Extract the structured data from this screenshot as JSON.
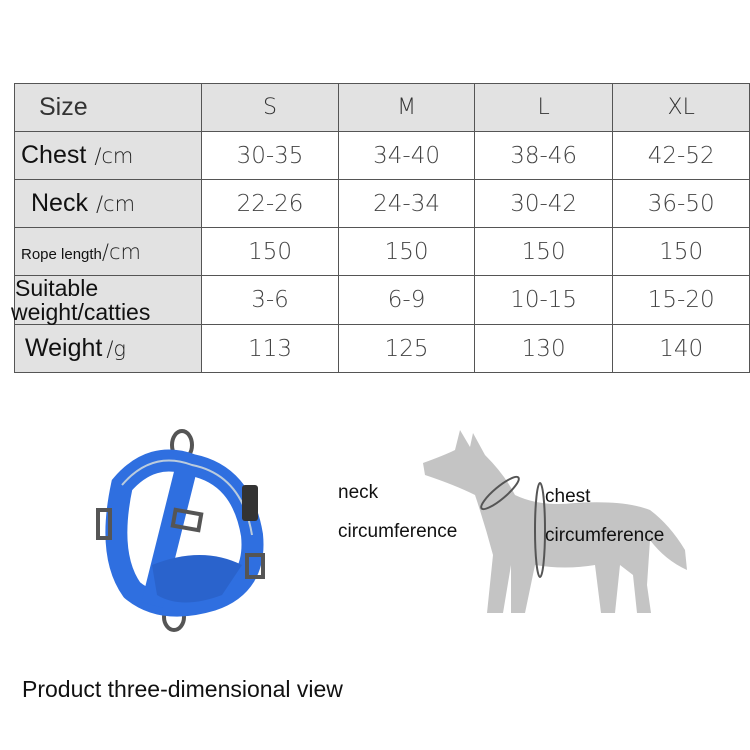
{
  "table": {
    "header": {
      "label": "Size",
      "sizes": [
        "S",
        "M",
        "L",
        "XL"
      ]
    },
    "rows": [
      {
        "label": "Chest",
        "unit": "/cm",
        "values": [
          "30-35",
          "34-40",
          "38-46",
          "42-52"
        ]
      },
      {
        "label": "Neck",
        "unit": "/cm",
        "values": [
          "22-26",
          "24-34",
          "30-42",
          "36-50"
        ]
      },
      {
        "label": "Rope length",
        "unit": "/cm",
        "values": [
          "150",
          "150",
          "150",
          "150"
        ]
      },
      {
        "label": "Suitable",
        "label2": "weight/catties",
        "values": [
          "3-6",
          "6-9",
          "10-15",
          "15-20"
        ]
      },
      {
        "label": "Weight",
        "unit": "/g",
        "values": [
          "113",
          "125",
          "130",
          "140"
        ]
      }
    ]
  },
  "diagram": {
    "neck_label_1": "neck",
    "neck_label_2": "circumference",
    "chest_label_1": "chest",
    "chest_label_2": "circumference"
  },
  "colors": {
    "harness": "#2f6fe0",
    "dog": "#c4c4c4",
    "header_bg": "#e2e2e2"
  },
  "caption": "Product three-dimensional view"
}
